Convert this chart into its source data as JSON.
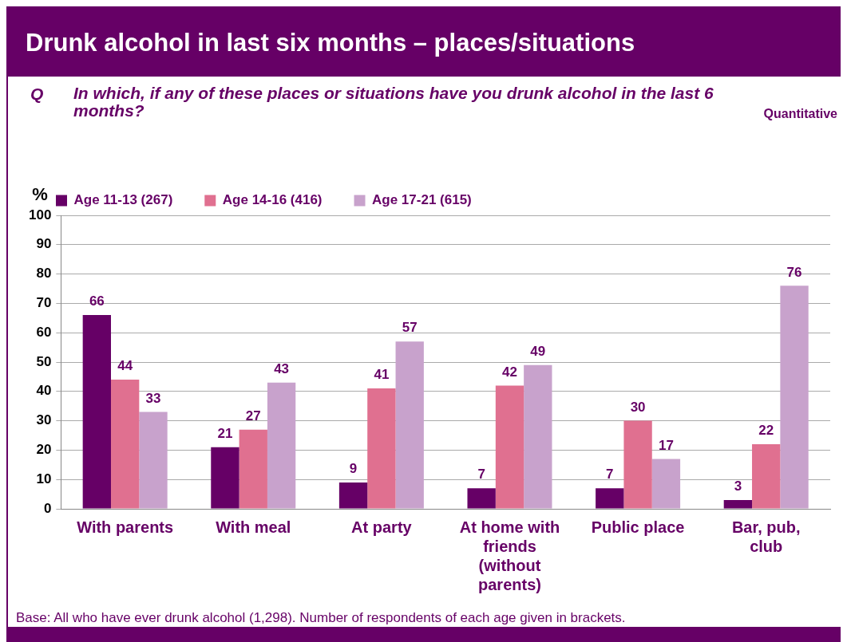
{
  "chart_data": {
    "type": "bar",
    "title": "Drunk alcohol in last six months – places/situations",
    "subtitle": "In which, if any of these places or situations have you drunk alcohol in the last 6 months?",
    "ylabel": "%",
    "annotations": [
      "Q",
      "Quantitative",
      "Base: All who have ever drunk alcohol (1,298). Number of respondents of each age given in brackets."
    ],
    "categories": [
      "With parents",
      "With meal",
      "At party",
      "At home with friends (without parents)",
      "Public place",
      "Bar, pub, club"
    ],
    "series": [
      {
        "name": "Age 11-13 (267)",
        "color": "#660066",
        "values": [
          66,
          21,
          9,
          7,
          7,
          3
        ]
      },
      {
        "name": "Age 14-16 (416)",
        "color": "#e07090",
        "values": [
          44,
          27,
          41,
          42,
          30,
          22
        ]
      },
      {
        "name": "Age 17-21 (615)",
        "color": "#c8a2cc",
        "values": [
          33,
          43,
          57,
          49,
          17,
          76
        ]
      }
    ],
    "ylim": [
      0,
      100
    ],
    "yticks": [
      0,
      10,
      20,
      30,
      40,
      50,
      60,
      70,
      80,
      90,
      100
    ],
    "grid": "y",
    "legend": "top",
    "data_labels": true
  }
}
